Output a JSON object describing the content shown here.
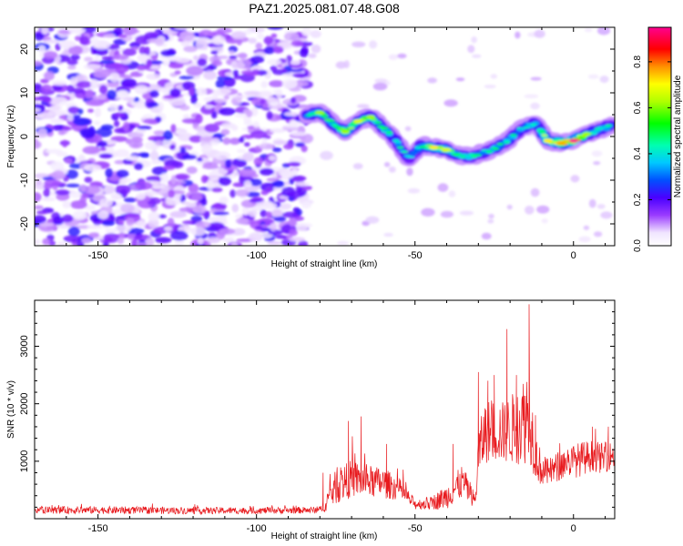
{
  "title": "PAZ1.2025.081.07.48.G08",
  "chart_data": [
    {
      "type": "heatmap",
      "xlabel": "Height of straight line (km)",
      "ylabel": "Frequency (Hz)",
      "xlim": [
        -170,
        13
      ],
      "ylim": [
        -25,
        25
      ],
      "xticks": [
        -150,
        -100,
        -50,
        0
      ],
      "yticks": [
        -20,
        -10,
        0,
        10,
        20
      ],
      "colorbar": {
        "label": "Normalized spectral amplitude",
        "ticks": [
          "0.0",
          "0.2",
          "0.4",
          "0.6",
          "0.8"
        ],
        "range": [
          0,
          0.95
        ]
      },
      "noise_region_x": [
        -170,
        -84
      ],
      "ridge": {
        "x": [
          -84,
          -80,
          -76,
          -72,
          -68,
          -64,
          -60,
          -56,
          -52,
          -48,
          -44,
          -40,
          -36,
          -32,
          -28,
          -24,
          -20,
          -16,
          -12,
          -8,
          -4,
          0,
          4,
          8,
          12
        ],
        "y": [
          5,
          5.5,
          3,
          1,
          3.5,
          4.5,
          2,
          -1,
          -5,
          -2,
          -2.5,
          -3,
          -4.5,
          -4.5,
          -3.5,
          -2.5,
          -0.5,
          2,
          3,
          -1,
          -1.5,
          -1,
          0.5,
          1.5,
          2.5
        ],
        "level": [
          0.5,
          0.6,
          0.55,
          0.6,
          0.65,
          0.6,
          0.55,
          0.5,
          0.45,
          0.55,
          0.7,
          0.65,
          0.55,
          0.5,
          0.5,
          0.55,
          0.5,
          0.45,
          0.5,
          0.7,
          0.75,
          0.95,
          0.6,
          0.5,
          0.5
        ]
      }
    },
    {
      "type": "line",
      "xlabel": "Height of straight line (km)",
      "ylabel": "SNR (10 * v/v)",
      "xlim": [
        -170,
        13
      ],
      "ylim": [
        0,
        3800
      ],
      "xticks": [
        -150,
        -100,
        -50,
        0
      ],
      "yticks": [
        1000,
        2000,
        3000
      ],
      "series": [
        {
          "color": "#e8191d",
          "envelope": {
            "x": [
              -170,
              -150,
              -120,
              -100,
              -80,
              -78,
              -75,
              -70,
              -65,
              -60,
              -55,
              -50,
              -45,
              -40,
              -35,
              -31,
              -30,
              -28,
              -25,
              -22,
              -20,
              -18,
              -16,
              -14,
              -12,
              -10,
              -8,
              -5,
              -2,
              0,
              3,
              6,
              9,
              12
            ],
            "base": [
              150,
              150,
              140,
              140,
              150,
              300,
              550,
              700,
              650,
              620,
              520,
              250,
              270,
              380,
              650,
              300,
              1100,
              1500,
              1550,
              1500,
              1550,
              1600,
              1700,
              1900,
              1100,
              850,
              800,
              900,
              1000,
              1000,
              1050,
              1100,
              1050,
              1100
            ],
            "amp": [
              100,
              110,
              100,
              95,
              100,
              280,
              500,
              550,
              480,
              450,
              330,
              150,
              200,
              350,
              500,
              200,
              800,
              900,
              950,
              900,
              1000,
              1100,
              1300,
              1500,
              700,
              500,
              400,
              450,
              450,
              500,
              500,
              450,
              450,
              400
            ]
          },
          "peaks": [
            [
              -79,
              800
            ],
            [
              -71,
              1700
            ],
            [
              -67,
              1780
            ],
            [
              -59,
              1300
            ],
            [
              -38,
              1300
            ],
            [
              -30,
              2550
            ],
            [
              -27,
              2400
            ],
            [
              -25,
              2500
            ],
            [
              -21,
              3300
            ],
            [
              -18,
              2500
            ],
            [
              -14,
              3730
            ],
            [
              -12,
              1800
            ],
            [
              6,
              1600
            ],
            [
              11,
              1600
            ]
          ]
        }
      ]
    }
  ]
}
